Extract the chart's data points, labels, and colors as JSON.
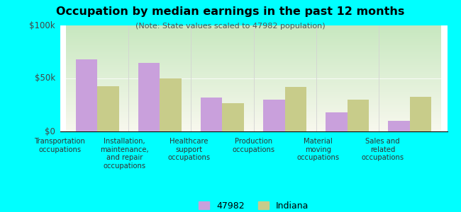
{
  "title": "Occupation by median earnings in the past 12 months",
  "subtitle": "(Note: State values scaled to 47982 population)",
  "categories": [
    "Transportation\noccupations",
    "Installation,\nmaintenance,\nand repair\noccupations",
    "Healthcare\nsupport\noccupations",
    "Production\noccupations",
    "Material\nmoving\noccupations",
    "Sales and\nrelated\noccupations"
  ],
  "values_47982": [
    68000,
    65000,
    32000,
    30000,
    18000,
    10000
  ],
  "values_indiana": [
    43000,
    50000,
    27000,
    42000,
    30000,
    33000
  ],
  "color_47982": "#c9a0dc",
  "color_indiana": "#c8cc8a",
  "background_color": "#00ffff",
  "ylim": [
    0,
    100000
  ],
  "yticks": [
    0,
    50000,
    100000
  ],
  "ytick_labels": [
    "$0",
    "$50k",
    "$100k"
  ],
  "legend_label_1": "47982",
  "legend_label_2": "Indiana",
  "bar_width": 0.35,
  "grad_top": "#c8e8c0",
  "grad_bottom": "#f8f8ee"
}
